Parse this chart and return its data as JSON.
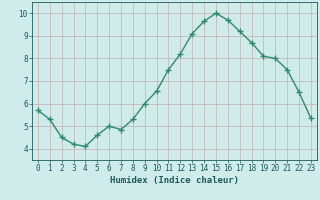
{
  "x": [
    0,
    1,
    2,
    3,
    4,
    5,
    6,
    7,
    8,
    9,
    10,
    11,
    12,
    13,
    14,
    15,
    16,
    17,
    18,
    19,
    20,
    21,
    22,
    23
  ],
  "y": [
    5.7,
    5.3,
    4.5,
    4.2,
    4.1,
    4.6,
    5.0,
    4.85,
    5.3,
    6.0,
    6.55,
    7.5,
    8.2,
    9.1,
    9.65,
    10.0,
    9.7,
    9.2,
    8.7,
    8.1,
    8.0,
    7.5,
    6.5,
    5.35
  ],
  "line_color": "#2e8b6e",
  "marker": "+",
  "marker_size": 4,
  "bg_color": "#d0ecea",
  "grid_color": "#c4b0b0",
  "axis_label_color": "#1a5a5a",
  "tick_color": "#1a5a5a",
  "xlabel": "Humidex (Indice chaleur)",
  "xlim": [
    -0.5,
    23.5
  ],
  "ylim": [
    3.5,
    10.5
  ],
  "yticks": [
    4,
    5,
    6,
    7,
    8,
    9,
    10
  ],
  "xticks": [
    0,
    1,
    2,
    3,
    4,
    5,
    6,
    7,
    8,
    9,
    10,
    11,
    12,
    13,
    14,
    15,
    16,
    17,
    18,
    19,
    20,
    21,
    22,
    23
  ],
  "xlabel_fontsize": 6.5,
  "tick_fontsize": 5.5,
  "linewidth": 1.0
}
